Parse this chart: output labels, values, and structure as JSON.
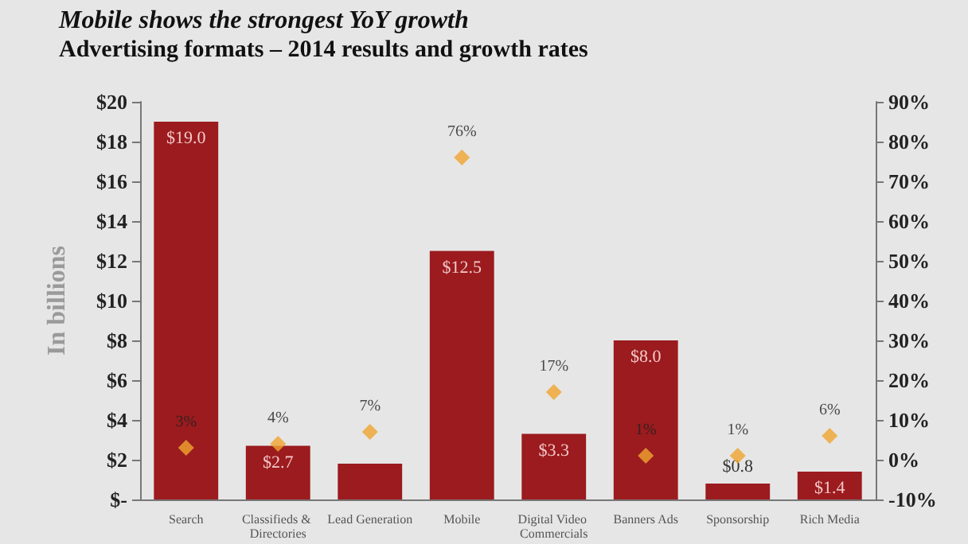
{
  "chart_data": {
    "type": "bar",
    "title": "Mobile shows the strongest YoY growth",
    "subtitle": "Advertising formats – 2014 results and growth rates",
    "ylabel": "In billions",
    "categories": [
      "Search",
      "Classifieds & Directories",
      "Lead Generation",
      "Mobile",
      "Digital Video Commercials",
      "Banners Ads",
      "Sponsorship",
      "Rich Media"
    ],
    "series": [
      {
        "color": "#9b1b1e",
        "values": [
          19.0,
          2.7,
          1.8,
          12.5,
          3.3,
          8.0,
          0.8,
          1.4
        ],
        "value_labels": [
          "$19.0",
          "$2.7",
          null,
          "$12.5",
          "$3.3",
          "$8.0",
          "$0.8",
          "$1.4"
        ]
      },
      {
        "type": "scatter",
        "axis": "y2",
        "color": "#f0a530",
        "marker": "diamond",
        "values": [
          3,
          4,
          7,
          76,
          17,
          1,
          1,
          6
        ],
        "value_labels": [
          "3%",
          "4%",
          "7%",
          "76%",
          "17%",
          "1%",
          "1%",
          "6%"
        ]
      }
    ],
    "ylim": [
      0,
      20
    ],
    "yticks": [
      {
        "value": 0,
        "label": "$-"
      },
      {
        "value": 2,
        "label": "$2"
      },
      {
        "value": 4,
        "label": "$4"
      },
      {
        "value": 6,
        "label": "$6"
      },
      {
        "value": 8,
        "label": "$8"
      },
      {
        "value": 10,
        "label": "$10"
      },
      {
        "value": 12,
        "label": "$12"
      },
      {
        "value": 14,
        "label": "$14"
      },
      {
        "value": 16,
        "label": "$16"
      },
      {
        "value": 18,
        "label": "$18"
      },
      {
        "value": 20,
        "label": "$20"
      }
    ],
    "y2lim": [
      -10,
      90
    ],
    "y2ticks": [
      {
        "value": -10,
        "label": "-10%"
      },
      {
        "value": 0,
        "label": "0%"
      },
      {
        "value": 10,
        "label": "10%"
      },
      {
        "value": 20,
        "label": "20%"
      },
      {
        "value": 30,
        "label": "30%"
      },
      {
        "value": 40,
        "label": "40%"
      },
      {
        "value": 50,
        "label": "50%"
      },
      {
        "value": 60,
        "label": "60%"
      },
      {
        "value": 70,
        "label": "70%"
      },
      {
        "value": 80,
        "label": "80%"
      },
      {
        "value": 90,
        "label": "90%"
      }
    ],
    "grid": false
  }
}
